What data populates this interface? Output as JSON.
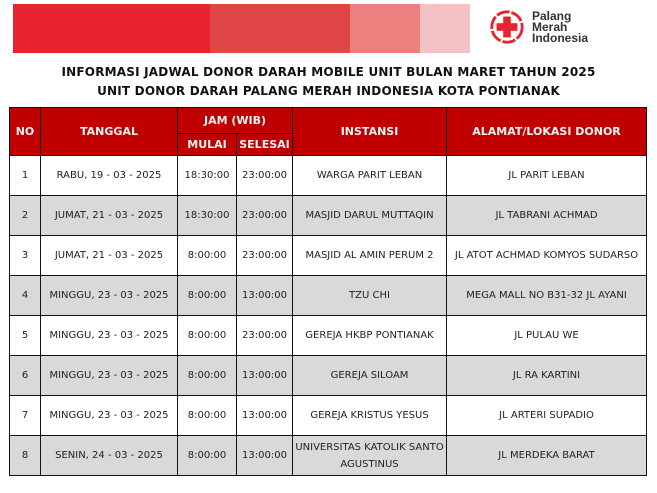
{
  "banner": {
    "colors": [
      "#e8222f",
      "#e04646",
      "#eb807e",
      "#f4c2c2"
    ]
  },
  "logo": {
    "line1": "Palang",
    "line2": "Merah",
    "line3": "Indonesia",
    "color": "#e8222f"
  },
  "title": {
    "line1": "INFORMASI JADWAL DONOR DARAH MOBILE UNIT BULAN MARET TAHUN 2025",
    "line2": "UNIT DONOR DARAH PALANG MERAH INDONESIA KOTA PONTIANAK"
  },
  "table": {
    "headers": {
      "no": "NO",
      "tanggal": "TANGGAL",
      "jam": "JAM (WIB)",
      "mulai": "MULAI",
      "selesai": "SELESAI",
      "instansi": "INSTANSI",
      "alamat": "ALAMAT/LOKASI DONOR"
    },
    "header_color": "#c00000",
    "rows": [
      {
        "no": "1",
        "tanggal": "RABU, 19 - 03 - 2025",
        "mulai": "18:30:00",
        "selesai": "23:00:00",
        "instansi": "WARGA PARIT LEBAN",
        "alamat": "JL PARIT LEBAN"
      },
      {
        "no": "2",
        "tanggal": "JUMAT, 21 - 03 - 2025",
        "mulai": "18:30:00",
        "selesai": "23:00:00",
        "instansi": "MASJID DARUL MUTTAQIN",
        "alamat": "JL TABRANI ACHMAD"
      },
      {
        "no": "3",
        "tanggal": "JUMAT, 21 - 03 - 2025",
        "mulai": "8:00:00",
        "selesai": "23:00:00",
        "instansi": "MASJID AL AMIN PERUM 2",
        "alamat": "JL ATOT ACHMAD KOMYOS SUDARSO"
      },
      {
        "no": "4",
        "tanggal": "MINGGU, 23 - 03 - 2025",
        "mulai": "8:00:00",
        "selesai": "13:00:00",
        "instansi": "TZU CHI",
        "alamat": "MEGA MALL NO B31-32 JL AYANI"
      },
      {
        "no": "5",
        "tanggal": "MINGGU, 23 - 03 - 2025",
        "mulai": "8:00:00",
        "selesai": "23:00:00",
        "instansi": "GEREJA HKBP PONTIANAK",
        "alamat": "JL PULAU WE"
      },
      {
        "no": "6",
        "tanggal": "MINGGU, 23 - 03 - 2025",
        "mulai": "8:00:00",
        "selesai": "13:00:00",
        "instansi": "GEREJA SILOAM",
        "alamat": "JL RA KARTINI"
      },
      {
        "no": "7",
        "tanggal": "MINGGU, 23 - 03 - 2025",
        "mulai": "8:00:00",
        "selesai": "13:00:00",
        "instansi": "GEREJA KRISTUS YESUS",
        "alamat": "JL ARTERI SUPADIO"
      },
      {
        "no": "8",
        "tanggal": "SENIN, 24 - 03 - 2025",
        "mulai": "8:00:00",
        "selesai": "13:00:00",
        "instansi": "UNIVERSITAS KATOLIK SANTO AGUSTINUS",
        "alamat": "JL MERDEKA BARAT"
      }
    ]
  }
}
